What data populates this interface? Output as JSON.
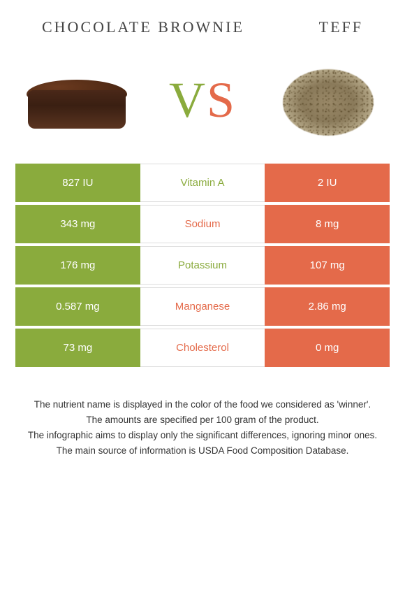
{
  "foods": {
    "left": {
      "name": "Chocolate brownie"
    },
    "right": {
      "name": "Teff"
    }
  },
  "vs": {
    "v": "V",
    "s": "S"
  },
  "colors": {
    "left": "#8aab3d",
    "right": "#e46a4a"
  },
  "rows": [
    {
      "nutrient": "Vitamin A",
      "left": "827 IU",
      "right": "2 IU",
      "winner": "left"
    },
    {
      "nutrient": "Sodium",
      "left": "343 mg",
      "right": "8 mg",
      "winner": "right"
    },
    {
      "nutrient": "Potassium",
      "left": "176 mg",
      "right": "107 mg",
      "winner": "left"
    },
    {
      "nutrient": "Manganese",
      "left": "0.587 mg",
      "right": "2.86 mg",
      "winner": "right"
    },
    {
      "nutrient": "Cholesterol",
      "left": "73 mg",
      "right": "0 mg",
      "winner": "right"
    }
  ],
  "footer": {
    "line1": "The nutrient name is displayed in the color of the food we considered as 'winner'.",
    "line2": "The amounts are specified per 100 gram of the product.",
    "line3": "The infographic aims to display only the significant differences, ignoring minor ones.",
    "line4": "The main source of information is USDA Food Composition Database."
  }
}
